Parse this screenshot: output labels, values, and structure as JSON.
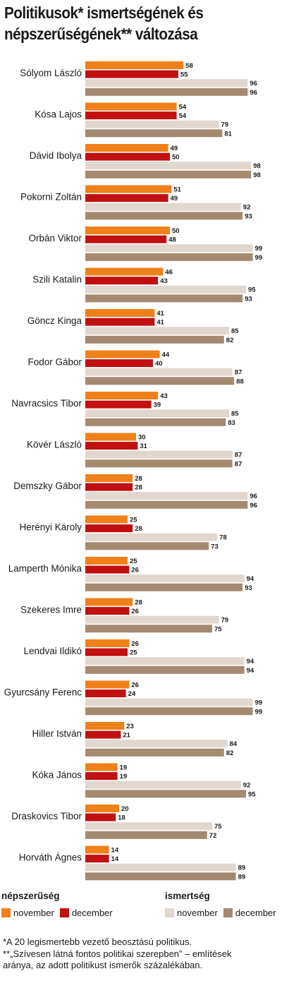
{
  "title_lines": [
    "Politikusok* ismertségének és",
    "népszerűségének** változása"
  ],
  "legend": {
    "popularity_title": "népszerűség",
    "awareness_title": "ismertség",
    "november": "november",
    "december": "december"
  },
  "colors": {
    "pop_nov": "#f08019",
    "pop_dec": "#c01010",
    "aw_nov": "#e2d7cf",
    "aw_dec": "#a38a70"
  },
  "notes": [
    "*A 20 legismertebb vezető beosztású politikus.",
    "**„Szívesen látná fontos politikai szerepben” – említések",
    "aránya, az adott politikust ismerők százalékában."
  ],
  "chart_data": {
    "type": "bar",
    "orientation": "horizontal",
    "xlim": [
      0,
      100
    ],
    "categories": [
      "Sólyom László",
      "Kósa Lajos",
      "Dávid Ibolya",
      "Pokorni Zoltán",
      "Orbán Viktor",
      "Szili Katalin",
      "Göncz Kinga",
      "Fodor Gábor",
      "Navracsics Tibor",
      "Kövér László",
      "Demszky Gábor",
      "Herényi Károly",
      "Lamperth Mónika",
      "Szekeres Imre",
      "Lendvai Ildikó",
      "Gyurcsány Ferenc",
      "Hiller István",
      "Kóka János",
      "Draskovics Tibor",
      "Horváth Ágnes"
    ],
    "series": [
      {
        "name": "népszerűség november",
        "values": [
          58,
          54,
          49,
          51,
          50,
          46,
          41,
          44,
          43,
          30,
          28,
          25,
          25,
          28,
          26,
          26,
          23,
          19,
          20,
          14
        ]
      },
      {
        "name": "népszerűség december",
        "values": [
          55,
          54,
          50,
          49,
          48,
          43,
          41,
          40,
          39,
          31,
          28,
          28,
          26,
          26,
          25,
          24,
          21,
          19,
          18,
          14
        ]
      },
      {
        "name": "ismertség november",
        "values": [
          96,
          79,
          98,
          92,
          99,
          95,
          85,
          87,
          85,
          87,
          96,
          78,
          94,
          79,
          94,
          99,
          84,
          92,
          75,
          89
        ]
      },
      {
        "name": "ismertség december",
        "values": [
          96,
          81,
          98,
          93,
          99,
          93,
          82,
          88,
          83,
          87,
          96,
          73,
          93,
          75,
          94,
          99,
          82,
          95,
          72,
          89
        ]
      }
    ]
  }
}
